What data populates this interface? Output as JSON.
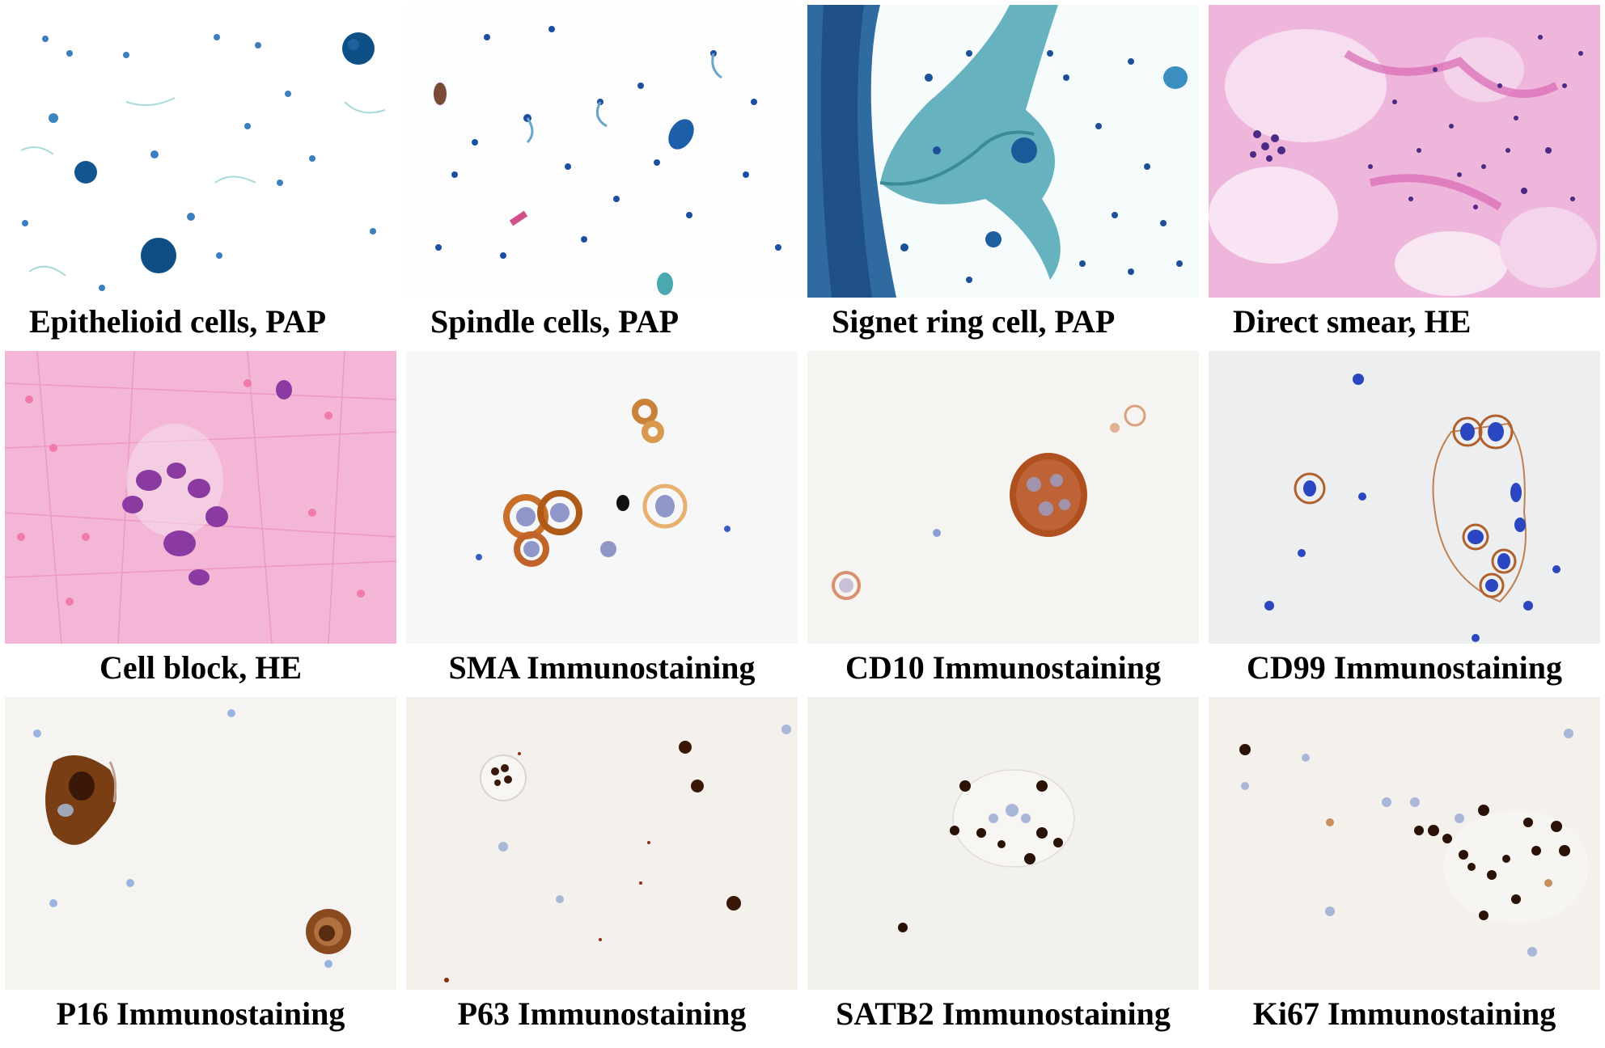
{
  "panels": [
    {
      "caption": "Epithelioid cells, PAP",
      "stain": "pap-sparse",
      "bg": "#ffffff"
    },
    {
      "caption": "Spindle cells, PAP",
      "stain": "pap-spindle",
      "bg": "#fdfdfd"
    },
    {
      "caption": "Signet ring cell, PAP",
      "stain": "pap-mucin",
      "bg": "#f6fbfc"
    },
    {
      "caption": "Direct smear, HE",
      "stain": "he-smear",
      "bg": "#efb6dc"
    },
    {
      "caption": "Cell block, HE",
      "stain": "he-block",
      "bg": "#f3b6d6"
    },
    {
      "caption": "SMA  Immunostaining",
      "stain": "ihc-cytoplasmic",
      "bg": "#f7f7f7"
    },
    {
      "caption": "CD10  Immunostaining",
      "stain": "ihc-single",
      "bg": "#f6f4f1"
    },
    {
      "caption": "CD99  Immunostaining",
      "stain": "ihc-membrane",
      "bg": "#eceef0"
    },
    {
      "caption": "P16  Immunostaining",
      "stain": "ihc-diffuse",
      "bg": "#f6f4f0"
    },
    {
      "caption": "P63  Immunostaining",
      "stain": "ihc-nuclear",
      "bg": "#f4f1ec"
    },
    {
      "caption": "SATB2  Immunostaining",
      "stain": "ihc-nuclear-cluster",
      "bg": "#f3f1ed"
    },
    {
      "caption": "Ki67  Immunostaining",
      "stain": "ihc-nuclear-scatter",
      "bg": "#f4f1ed"
    }
  ],
  "colors": {
    "pap_nucleus": "#1f64a8",
    "pap_mucin": "#4aaab8",
    "he_nucleus": "#4a2a84",
    "he_stroma": "#e98ccb",
    "dab_brown": "#8a3a10",
    "hematoxylin_blue": "#3b5cc0"
  }
}
